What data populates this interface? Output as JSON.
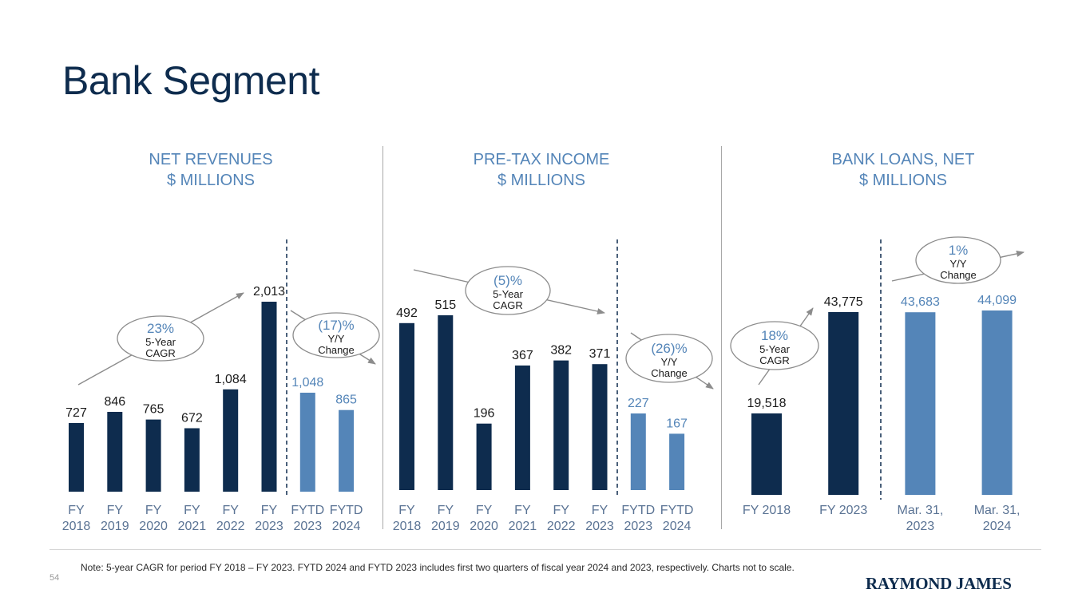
{
  "page": {
    "title": "Bank Segment",
    "note": "Note: 5-year CAGR for period FY 2018 – FY 2023. FYTD 2024 and FYTD 2023 includes first two quarters of fiscal year 2024 and 2023, respectively. Charts not to scale.",
    "page_number": "54",
    "logo_text": "RAYMOND JAMES"
  },
  "colors": {
    "dark": "#0e2c4e",
    "light": "#5485b8",
    "axis": "#5a7394",
    "annotation": "#8c8c8c"
  },
  "chart_data": [
    {
      "type": "bar",
      "title": "NET REVENUES\n$ MILLIONS",
      "title_lines": [
        "NET REVENUES",
        "$ MILLIONS"
      ],
      "categories": [
        [
          "FY",
          "2018"
        ],
        [
          "FY",
          "2019"
        ],
        [
          "FY",
          "2020"
        ],
        [
          "FY",
          "2021"
        ],
        [
          "FY",
          "2022"
        ],
        [
          "FY",
          "2023"
        ],
        [
          "FYTD",
          "2023"
        ],
        [
          "FYTD",
          "2024"
        ]
      ],
      "values": [
        727,
        846,
        765,
        672,
        1084,
        2013,
        1048,
        865
      ],
      "value_labels": [
        "727",
        "846",
        "765",
        "672",
        "1,084",
        "2,013",
        "1,048",
        "865"
      ],
      "bar_tones": [
        "dark",
        "dark",
        "dark",
        "dark",
        "dark",
        "dark",
        "light",
        "light"
      ],
      "annotations": [
        {
          "value": "23%",
          "label_lines": [
            "5-Year",
            "CAGR"
          ]
        },
        {
          "value": "(17)%",
          "label_lines": [
            "Y/Y",
            "Change"
          ]
        }
      ]
    },
    {
      "type": "bar",
      "title": "PRE-TAX INCOME\n$ MILLIONS",
      "title_lines": [
        "PRE-TAX INCOME",
        "$ MILLIONS"
      ],
      "categories": [
        [
          "FY",
          "2018"
        ],
        [
          "FY",
          "2019"
        ],
        [
          "FY",
          "2020"
        ],
        [
          "FY",
          "2021"
        ],
        [
          "FY",
          "2022"
        ],
        [
          "FY",
          "2023"
        ],
        [
          "FYTD",
          "2023"
        ],
        [
          "FYTD",
          "2024"
        ]
      ],
      "values": [
        492,
        515,
        196,
        367,
        382,
        371,
        227,
        167
      ],
      "value_labels": [
        "492",
        "515",
        "196",
        "367",
        "382",
        "371",
        "227",
        "167"
      ],
      "bar_tones": [
        "dark",
        "dark",
        "dark",
        "dark",
        "dark",
        "dark",
        "light",
        "light"
      ],
      "annotations": [
        {
          "value": "(5)%",
          "label_lines": [
            "5-Year",
            "CAGR"
          ]
        },
        {
          "value": "(26)%",
          "label_lines": [
            "Y/Y",
            "Change"
          ]
        }
      ]
    },
    {
      "type": "bar",
      "title": "BANK LOANS, NET\n$ MILLIONS",
      "title_lines": [
        "BANK LOANS, NET",
        "$ MILLIONS"
      ],
      "categories": [
        [
          "FY 2018"
        ],
        [
          "FY 2023"
        ],
        [
          "Mar. 31,",
          "2023"
        ],
        [
          "Mar. 31,",
          "2024"
        ]
      ],
      "values": [
        19518,
        43775,
        43683,
        44099
      ],
      "value_labels": [
        "19,518",
        "43,775",
        "43,683",
        "44,099"
      ],
      "bar_tones": [
        "dark",
        "dark",
        "light",
        "light"
      ],
      "annotations": [
        {
          "value": "18%",
          "label_lines": [
            "5-Year",
            "CAGR"
          ]
        },
        {
          "value": "1%",
          "label_lines": [
            "Y/Y",
            "Change"
          ]
        }
      ]
    }
  ]
}
